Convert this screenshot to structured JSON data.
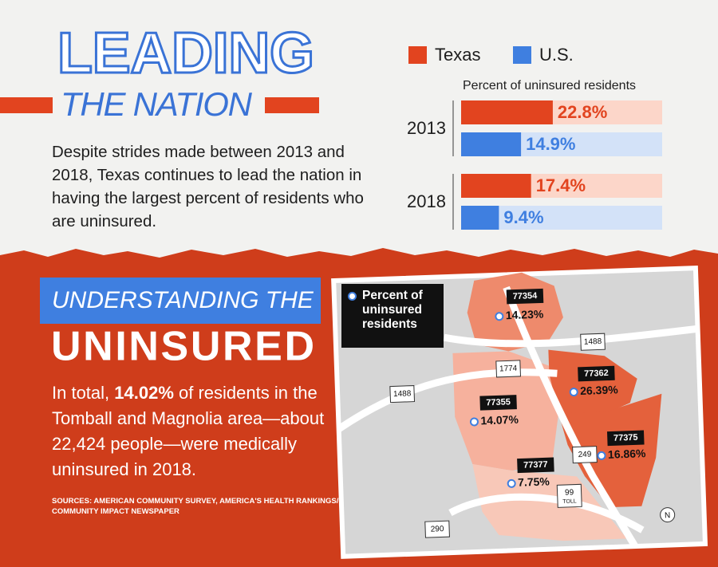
{
  "header": {
    "title": "LEADING",
    "subtitle": "THE NATION",
    "body": "Despite strides made between 2013 and 2018, Texas continues to lead the nation in having the largest percent of residents who are uninsured."
  },
  "chart_data": {
    "type": "bar",
    "orientation": "horizontal",
    "title": "Percent of uninsured residents",
    "categories": [
      "2013",
      "2018"
    ],
    "series": [
      {
        "name": "Texas",
        "color": "#e2441f",
        "background": "#fcd6c9",
        "values": [
          22.8,
          17.4
        ],
        "value_labels": [
          "22.8%",
          "17.4%"
        ]
      },
      {
        "name": "U.S.",
        "color": "#3f7fe0",
        "background": "#d3e2f8",
        "values": [
          14.9,
          9.4
        ],
        "value_labels": [
          "14.9%",
          "9.4%"
        ]
      }
    ],
    "xlim": [
      0,
      50
    ]
  },
  "lower": {
    "banner": "UNDERSTANDING THE",
    "title": "UNINSURED",
    "body": [
      "In total, ",
      "14.02%",
      " of residents in the Tomball and Magnolia area—about 22,424 people—were medically uninsured in 2018."
    ],
    "sources": [
      "SOURCES: AMERICAN COMMUNITY SURVEY, AMERICA'S HEALTH RANKINGS/",
      "COMMUNITY IMPACT NEWSPAPER"
    ]
  },
  "map": {
    "legend": "Percent of uninsured residents",
    "areas": [
      {
        "zip": "77354",
        "label": "14.23%"
      },
      {
        "zip": "77362",
        "label": "26.39%"
      },
      {
        "zip": "77355",
        "label": "14.07%"
      },
      {
        "zip": "77375",
        "label": "16.86%"
      },
      {
        "zip": "77377",
        "label": "7.75%"
      }
    ],
    "roads": [
      "1488",
      "1774",
      "1488",
      "249",
      "99",
      "290"
    ],
    "toll": "TOLL",
    "compass": "N"
  }
}
